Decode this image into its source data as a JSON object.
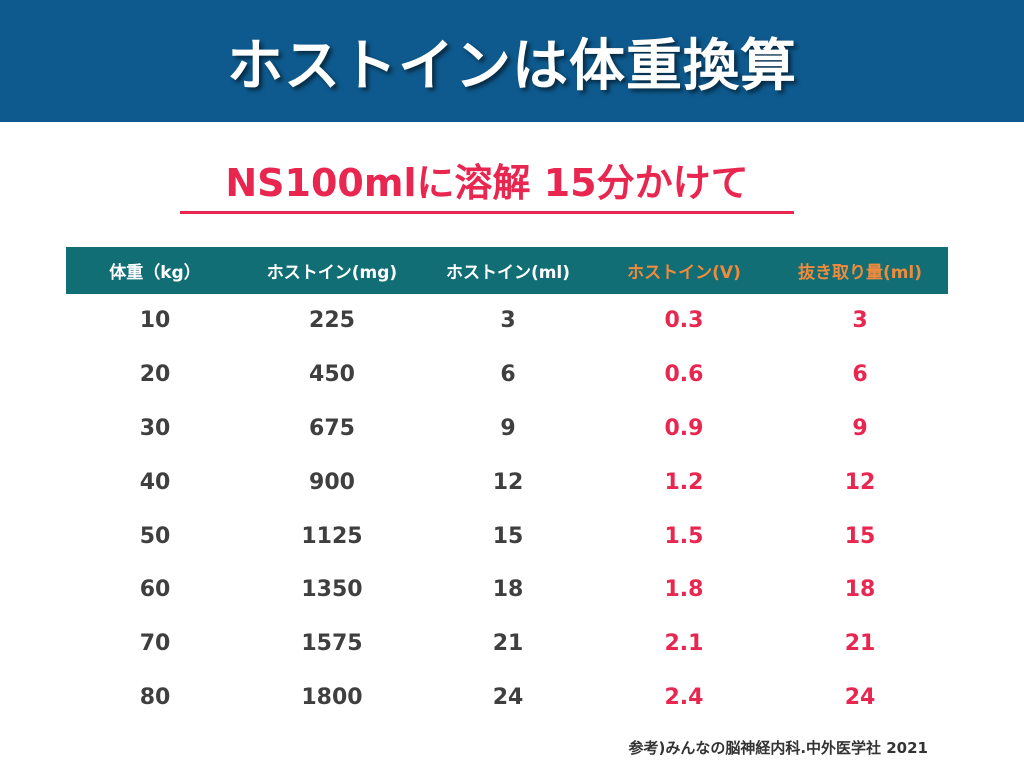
{
  "header": {
    "title": "ホストインは体重換算"
  },
  "subtitle": "NS100mlに溶解  15分かけて",
  "table": {
    "headers": [
      "体重（kg）",
      "ホストイン(mg)",
      "ホストイン(ml)",
      "ホストイン(V)",
      "抜き取り量(ml)"
    ],
    "rows": [
      [
        "10",
        "225",
        "3",
        "0.3",
        "3"
      ],
      [
        "20",
        "450",
        "6",
        "0.6",
        "6"
      ],
      [
        "30",
        "675",
        "9",
        "0.9",
        "9"
      ],
      [
        "40",
        "900",
        "12",
        "1.2",
        "12"
      ],
      [
        "50",
        "1125",
        "15",
        "1.5",
        "15"
      ],
      [
        "60",
        "1350",
        "18",
        "1.8",
        "18"
      ],
      [
        "70",
        "1575",
        "21",
        "2.1",
        "21"
      ],
      [
        "80",
        "1800",
        "24",
        "2.4",
        "24"
      ]
    ]
  },
  "reference": "参考)みんなの脳神経内科.中外医学社 2021",
  "colors": {
    "header_bg": "#0e5a8e",
    "table_header_bg": "#116e74",
    "accent_red": "#e8264f",
    "accent_orange": "#f08a3c",
    "body_text": "#3f3f3f"
  }
}
